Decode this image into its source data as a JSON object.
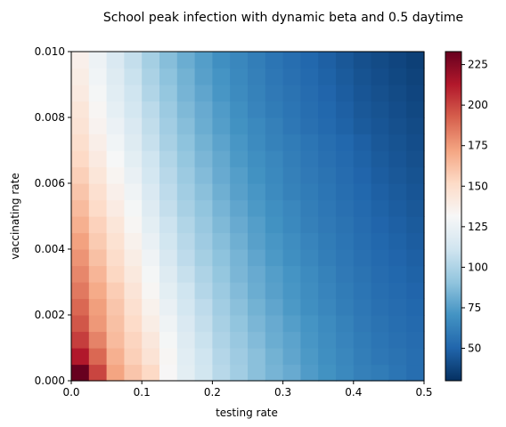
{
  "chart_data": {
    "type": "heatmap",
    "title": "School peak infection with dynamic beta and 0.5 daytime",
    "xlabel": "testing rate",
    "ylabel": "vaccinating rate",
    "xlim": [
      0,
      0.5
    ],
    "ylim": [
      0,
      0.01
    ],
    "x_ticks": [
      "0.0",
      "0.1",
      "0.2",
      "0.3",
      "0.4",
      "0.5"
    ],
    "y_ticks": [
      "0.000",
      "0.002",
      "0.004",
      "0.006",
      "0.008",
      "0.010"
    ],
    "colorbar": {
      "range": [
        30,
        233
      ],
      "colormap": "RdBu_r",
      "ticks": [
        "50",
        "75",
        "100",
        "125",
        "150",
        "175",
        "200",
        "225"
      ]
    },
    "grid_cols": 20,
    "grid_rows": 20,
    "x_centers": [
      0.0125,
      0.0375,
      0.0625,
      0.0875,
      0.1125,
      0.1375,
      0.1625,
      0.1875,
      0.2125,
      0.2375,
      0.2625,
      0.2875,
      0.3125,
      0.3375,
      0.3625,
      0.3875,
      0.4125,
      0.4375,
      0.4625,
      0.4875
    ],
    "y_centers": [
      0.00025,
      0.00075,
      0.00125,
      0.00175,
      0.00225,
      0.00275,
      0.00325,
      0.00375,
      0.00425,
      0.00475,
      0.00525,
      0.00575,
      0.00625,
      0.00675,
      0.00725,
      0.00775,
      0.00825,
      0.00875,
      0.00925,
      0.00975
    ],
    "values": [
      [
        233,
        200,
        172,
        160,
        152,
        132,
        121,
        112,
        103,
        96,
        89,
        84,
        80,
        74,
        70,
        66,
        62,
        60,
        57,
        54
      ],
      [
        213,
        190,
        168,
        156,
        146,
        133,
        120,
        111,
        102,
        95,
        89,
        83,
        78,
        73,
        69,
        65,
        61,
        58,
        56,
        54
      ],
      [
        202,
        182,
        164,
        154,
        143,
        130,
        118,
        109,
        100,
        93,
        87,
        81,
        77,
        72,
        68,
        64,
        60,
        57,
        55,
        53
      ],
      [
        195,
        176,
        162,
        151,
        139,
        127,
        116,
        107,
        98,
        91,
        85,
        80,
        75,
        71,
        67,
        63,
        59,
        56,
        54,
        52
      ],
      [
        190,
        174,
        160,
        148,
        136,
        124,
        113,
        105,
        96,
        89,
        83,
        78,
        73,
        69,
        65,
        61,
        58,
        55,
        53,
        51
      ],
      [
        185,
        170,
        157,
        145,
        133,
        121,
        111,
        102,
        94,
        87,
        81,
        76,
        72,
        68,
        64,
        60,
        57,
        54,
        52,
        50
      ],
      [
        181,
        166,
        153,
        142,
        130,
        118,
        108,
        100,
        92,
        85,
        80,
        75,
        71,
        67,
        63,
        59,
        56,
        53,
        51,
        49
      ],
      [
        177,
        162,
        150,
        139,
        127,
        115,
        105,
        97,
        90,
        84,
        78,
        73,
        69,
        65,
        61,
        58,
        55,
        52,
        50,
        48
      ],
      [
        173,
        158,
        147,
        136,
        124,
        112,
        103,
        95,
        88,
        82,
        76,
        72,
        68,
        64,
        60,
        57,
        54,
        51,
        49,
        47
      ],
      [
        168,
        155,
        144,
        133,
        121,
        110,
        101,
        93,
        86,
        80,
        75,
        70,
        66,
        62,
        59,
        56,
        53,
        50,
        48,
        46
      ],
      [
        164,
        151,
        140,
        130,
        118,
        107,
        98,
        91,
        84,
        78,
        73,
        69,
        65,
        61,
        58,
        55,
        52,
        49,
        47,
        45
      ],
      [
        160,
        148,
        137,
        127,
        116,
        105,
        96,
        89,
        82,
        76,
        72,
        67,
        63,
        60,
        57,
        54,
        51,
        48,
        46,
        44
      ],
      [
        156,
        144,
        134,
        124,
        113,
        103,
        94,
        87,
        80,
        75,
        70,
        66,
        62,
        59,
        56,
        53,
        50,
        47,
        45,
        43
      ],
      [
        152,
        141,
        131,
        121,
        111,
        101,
        92,
        85,
        79,
        73,
        69,
        65,
        61,
        58,
        55,
        52,
        49,
        46,
        44,
        42
      ],
      [
        149,
        138,
        128,
        118,
        108,
        98,
        90,
        83,
        77,
        72,
        67,
        63,
        60,
        57,
        54,
        51,
        48,
        45,
        43,
        41
      ],
      [
        146,
        135,
        125,
        116,
        106,
        96,
        88,
        81,
        75,
        70,
        66,
        62,
        58,
        55,
        52,
        49,
        46,
        44,
        42,
        40
      ],
      [
        144,
        133,
        122,
        113,
        104,
        94,
        86,
        80,
        74,
        69,
        64,
        60,
        57,
        54,
        51,
        48,
        45,
        43,
        41,
        39
      ],
      [
        141,
        130,
        120,
        111,
        101,
        92,
        84,
        78,
        72,
        67,
        63,
        59,
        56,
        53,
        50,
        47,
        44,
        42,
        40,
        38
      ],
      [
        139,
        128,
        118,
        109,
        99,
        90,
        83,
        76,
        71,
        66,
        62,
        58,
        55,
        52,
        49,
        46,
        43,
        41,
        39,
        37
      ],
      [
        137,
        126,
        116,
        107,
        97,
        88,
        81,
        75,
        69,
        65,
        61,
        57,
        54,
        51,
        48,
        45,
        42,
        40,
        38,
        36
      ]
    ]
  }
}
